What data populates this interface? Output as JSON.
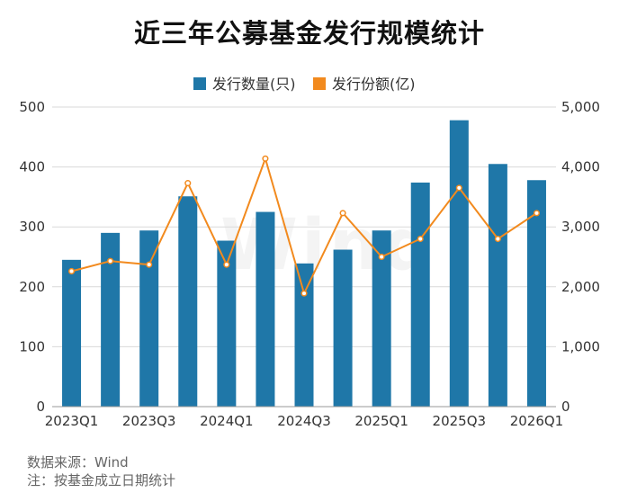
{
  "title": "近三年公募基金发行规模统计",
  "watermark": "Wind",
  "source": "数据来源：Wind",
  "note": "注：按基金成立日期统计",
  "colors": {
    "bar": "#1f77a8",
    "line": "#f28a1e",
    "grid": "#d9d9d9",
    "text": "#333333"
  },
  "chart_data": {
    "type": "bar",
    "categories": [
      "2023Q1",
      "2023Q2",
      "2023Q3",
      "2023Q4",
      "2024Q1",
      "2024Q2",
      "2024Q3",
      "2024Q4",
      "2025Q1",
      "2025Q2",
      "2025Q3",
      "2025Q4",
      "2026Q1"
    ],
    "x_tick_labels": [
      "2023Q1",
      "",
      "2023Q3",
      "",
      "2024Q1",
      "",
      "2024Q3",
      "",
      "2025Q1",
      "",
      "2025Q3",
      "",
      "2026Q1"
    ],
    "series": [
      {
        "name": "发行数量(只)",
        "type": "bar",
        "axis": "left",
        "values": [
          245,
          290,
          294,
          351,
          277,
          325,
          239,
          262,
          294,
          374,
          478,
          405,
          378
        ]
      },
      {
        "name": "发行份额(亿)",
        "type": "line",
        "axis": "right",
        "values": [
          2260,
          2430,
          2370,
          3730,
          2370,
          4140,
          1890,
          3230,
          2500,
          2800,
          3650,
          2800,
          3230
        ]
      }
    ],
    "y_left": {
      "lim": [
        0,
        500
      ],
      "ticks": [
        "0",
        "100",
        "200",
        "300",
        "400",
        "500"
      ]
    },
    "y_right": {
      "lim": [
        0,
        5000
      ],
      "ticks": [
        "0",
        "1,000",
        "2,000",
        "3,000",
        "4,000",
        "5,000"
      ]
    },
    "grid": true,
    "legend_position": "top"
  }
}
